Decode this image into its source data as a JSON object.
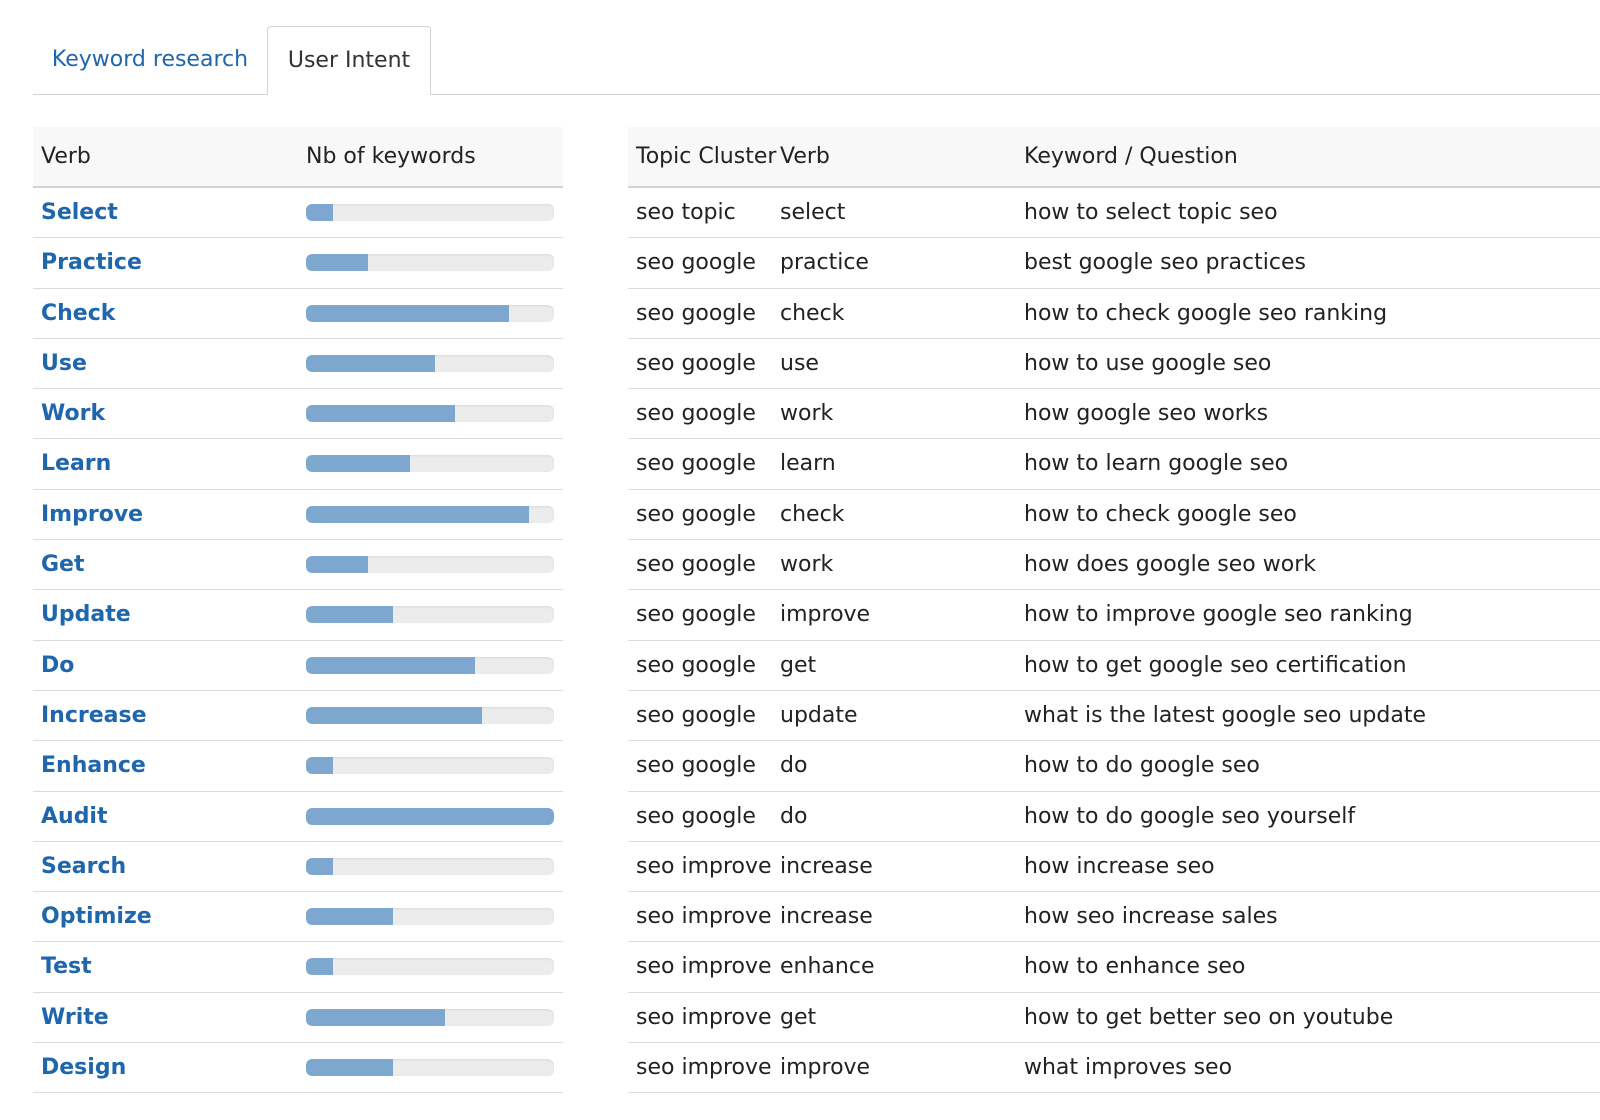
{
  "tabs": [
    {
      "label": "Keyword research",
      "active": false
    },
    {
      "label": "User Intent",
      "active": true
    }
  ],
  "colors": {
    "link": "#1f66ad",
    "bar_fill": "#7ea7cf",
    "bar_track": "#ececec"
  },
  "verbs_table": {
    "headers": {
      "verb": "Verb",
      "count": "Nb of keywords"
    },
    "rows": [
      {
        "verb": "Select",
        "fill_pct": 11
      },
      {
        "verb": "Practice",
        "fill_pct": 25
      },
      {
        "verb": "Check",
        "fill_pct": 82
      },
      {
        "verb": "Use",
        "fill_pct": 52
      },
      {
        "verb": "Work",
        "fill_pct": 60
      },
      {
        "verb": "Learn",
        "fill_pct": 42
      },
      {
        "verb": "Improve",
        "fill_pct": 90
      },
      {
        "verb": "Get",
        "fill_pct": 25
      },
      {
        "verb": "Update",
        "fill_pct": 35
      },
      {
        "verb": "Do",
        "fill_pct": 68
      },
      {
        "verb": "Increase",
        "fill_pct": 71
      },
      {
        "verb": "Enhance",
        "fill_pct": 11
      },
      {
        "verb": "Audit",
        "fill_pct": 100
      },
      {
        "verb": "Search",
        "fill_pct": 11
      },
      {
        "verb": "Optimize",
        "fill_pct": 35
      },
      {
        "verb": "Test",
        "fill_pct": 11
      },
      {
        "verb": "Write",
        "fill_pct": 56
      },
      {
        "verb": "Design",
        "fill_pct": 35
      }
    ]
  },
  "keywords_table": {
    "headers": {
      "topic": "Topic Cluster",
      "verb": "Verb",
      "keyword": "Keyword / Question"
    },
    "rows": [
      {
        "topic": "seo topic",
        "verb": "select",
        "keyword": "how to select topic seo"
      },
      {
        "topic": "seo google",
        "verb": "practice",
        "keyword": "best google seo practices"
      },
      {
        "topic": "seo google",
        "verb": "check",
        "keyword": "how to check google seo ranking"
      },
      {
        "topic": "seo google",
        "verb": "use",
        "keyword": "how to use google seo"
      },
      {
        "topic": "seo google",
        "verb": "work",
        "keyword": "how google seo works"
      },
      {
        "topic": "seo google",
        "verb": "learn",
        "keyword": "how to learn google seo"
      },
      {
        "topic": "seo google",
        "verb": "check",
        "keyword": "how to check google seo"
      },
      {
        "topic": "seo google",
        "verb": "work",
        "keyword": "how does google seo work"
      },
      {
        "topic": "seo google",
        "verb": "improve",
        "keyword": "how to improve google seo ranking"
      },
      {
        "topic": "seo google",
        "verb": "get",
        "keyword": "how to get google seo certification"
      },
      {
        "topic": "seo google",
        "verb": "update",
        "keyword": "what is the latest google seo update"
      },
      {
        "topic": "seo google",
        "verb": "do",
        "keyword": "how to do google seo"
      },
      {
        "topic": "seo google",
        "verb": "do",
        "keyword": "how to do google seo yourself"
      },
      {
        "topic": "seo improve",
        "verb": "increase",
        "keyword": "how increase seo"
      },
      {
        "topic": "seo improve",
        "verb": "increase",
        "keyword": "how seo increase sales"
      },
      {
        "topic": "seo improve",
        "verb": "enhance",
        "keyword": "how to enhance seo"
      },
      {
        "topic": "seo improve",
        "verb": "get",
        "keyword": "how to get better seo on youtube"
      },
      {
        "topic": "seo improve",
        "verb": "improve",
        "keyword": "what improves seo"
      }
    ]
  }
}
